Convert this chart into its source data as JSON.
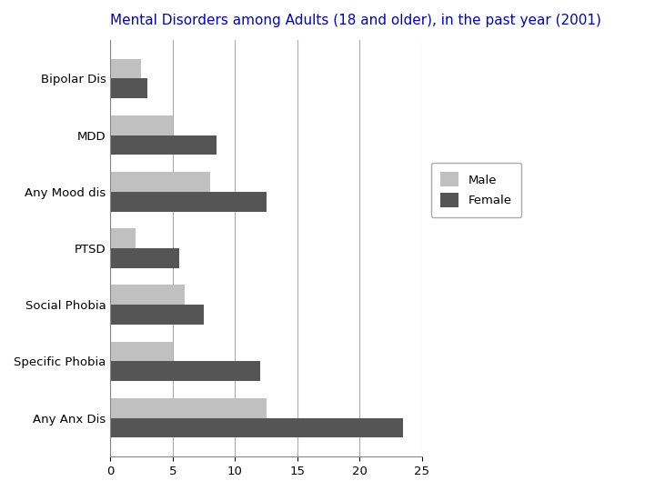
{
  "title": "Mental Disorders among Adults (18 and older), in the past year (2001)",
  "title_color": "#0000CC",
  "title_fontsize": 11,
  "categories": [
    "Any Anx Dis",
    "Specific Phobia",
    "Social Phobia",
    "PTSD",
    "Any Mood dis",
    "MDD",
    "Bipolar Dis"
  ],
  "male_values": [
    12.5,
    5.0,
    6.0,
    2.0,
    8.0,
    5.0,
    2.5
  ],
  "female_values": [
    23.5,
    12.0,
    7.5,
    5.5,
    12.5,
    8.5,
    3.0
  ],
  "male_color": "#C0C0C0",
  "female_color": "#555555",
  "xlim": [
    0,
    25
  ],
  "xticks": [
    0,
    5,
    10,
    15,
    20,
    25
  ],
  "legend_labels": [
    "Male",
    "Female"
  ],
  "bar_height": 0.35,
  "background_color": "#ffffff",
  "grid_color": "#aaaaaa"
}
